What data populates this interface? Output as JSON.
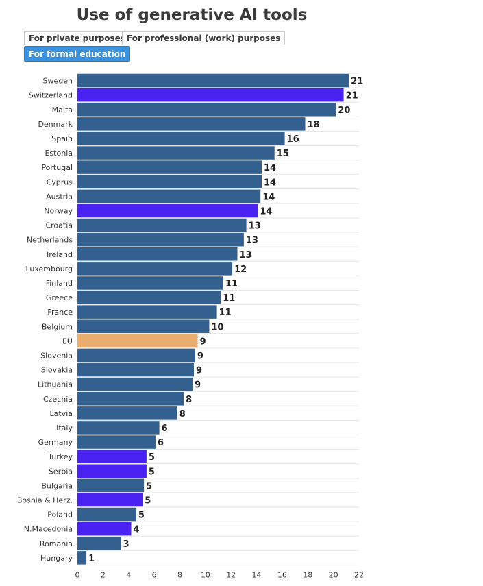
{
  "chart_title": "Use of generative AI tools",
  "tabs": [
    {
      "label": "For private purposes",
      "active": false
    },
    {
      "label": "For professional (work) purposes",
      "active": false
    },
    {
      "label": "For formal education",
      "active": true
    }
  ],
  "colors": {
    "country": "#33608f",
    "non_eu": "#4a22f2",
    "eu_average": "#eaad70",
    "active_tab": "#3d92dd"
  },
  "chart_data": {
    "type": "bar",
    "orientation": "horizontal",
    "title": "Use of generative AI tools",
    "categories": [
      "Sweden",
      "Switzerland",
      "Malta",
      "Denmark",
      "Spain",
      "Estonia",
      "Portugal",
      "Cyprus",
      "Austria",
      "Norway",
      "Croatia",
      "Netherlands",
      "Ireland",
      "Luxembourg",
      "Finland",
      "Greece",
      "France",
      "Belgium",
      "EU",
      "Slovenia",
      "Slovakia",
      "Lithuania",
      "Czechia",
      "Latvia",
      "Italy",
      "Germany",
      "Turkey",
      "Serbia",
      "Bulgaria",
      "Bosnia & Herz.",
      "Poland",
      "N.Macedonia",
      "Romania",
      "Hungary"
    ],
    "values": [
      21.2,
      20.8,
      20.2,
      17.8,
      16.2,
      15.4,
      14.4,
      14.4,
      14.3,
      14.1,
      13.2,
      13.0,
      12.5,
      12.1,
      11.4,
      11.2,
      10.9,
      10.3,
      9.4,
      9.2,
      9.1,
      9.0,
      8.3,
      7.8,
      6.4,
      6.1,
      5.4,
      5.4,
      5.2,
      5.1,
      4.6,
      4.2,
      3.4,
      0.7
    ],
    "labels": [
      "21",
      "21",
      "20",
      "18",
      "16",
      "15",
      "14",
      "14",
      "14",
      "14",
      "13",
      "13",
      "13",
      "12",
      "11",
      "11",
      "11",
      "10",
      "9",
      "9",
      "9",
      "9",
      "8",
      "8",
      "6",
      "6",
      "5",
      "5",
      "5",
      "5",
      "5",
      "4",
      "3",
      "1"
    ],
    "groups": [
      "country",
      "non_eu",
      "country",
      "country",
      "country",
      "country",
      "country",
      "country",
      "country",
      "non_eu",
      "country",
      "country",
      "country",
      "country",
      "country",
      "country",
      "country",
      "country",
      "eu_average",
      "country",
      "country",
      "country",
      "country",
      "country",
      "country",
      "country",
      "non_eu",
      "non_eu",
      "country",
      "non_eu",
      "country",
      "non_eu",
      "country",
      "country"
    ],
    "xlim": [
      0,
      22
    ],
    "xticks": [
      "0",
      "2",
      "4",
      "6",
      "8",
      "10",
      "12",
      "14",
      "16",
      "18",
      "20",
      "22"
    ],
    "grid": true,
    "legend": "none"
  }
}
